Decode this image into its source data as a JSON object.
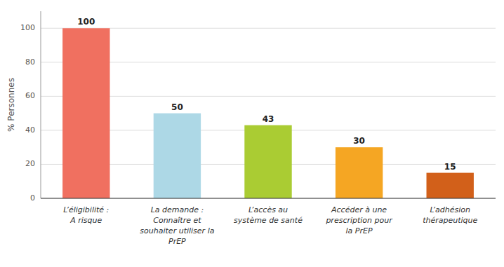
{
  "chart_data": {
    "type": "bar",
    "categories": [
      "L’éligibilité :\nA risque",
      "La demande :\nConnaître et\nsouhaiter utiliser la\nPrEP",
      "L’accès au\nsystème de santé",
      "Accéder à une\nprescription pour\nla PrEP",
      "L’adhésion\nthérapeutique"
    ],
    "values": [
      100,
      50,
      43,
      30,
      15
    ],
    "colors": [
      "#F07060",
      "#ADD8E6",
      "#AACC33",
      "#F5A623",
      "#D2601A"
    ],
    "ylabel": "% Personnes",
    "ylim": [
      0,
      110
    ],
    "yticks": [
      0,
      20,
      40,
      60,
      80,
      100
    ],
    "grid": true,
    "data_labels": true
  }
}
